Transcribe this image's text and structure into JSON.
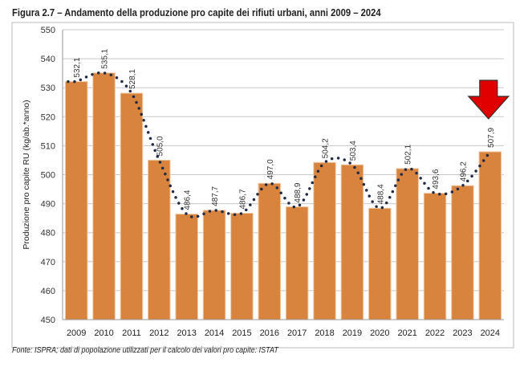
{
  "chart_data": {
    "type": "bar",
    "title": "Figura 2.7 – Andamento della produzione pro capite dei rifiuti urbani, anni 2009 – 2024",
    "ylabel": "Produzione pro capite RU (kg/ab.*anno)",
    "xlabel": "",
    "ylim": [
      450,
      550
    ],
    "yticks": [
      450,
      460,
      470,
      480,
      490,
      500,
      510,
      520,
      530,
      540,
      550
    ],
    "grid": true,
    "categories": [
      "2009",
      "2010",
      "2011",
      "2012",
      "2013",
      "2014",
      "2015",
      "2016",
      "2017",
      "2018",
      "2019",
      "2020",
      "2021",
      "2022",
      "2023",
      "2024"
    ],
    "values": [
      532.1,
      535.1,
      528.1,
      505.0,
      486.4,
      487.7,
      486.7,
      497.0,
      488.9,
      504.2,
      503.4,
      488.4,
      502.1,
      493.6,
      496.2,
      507.9
    ],
    "data_labels": [
      "532,1",
      "535,1",
      "528,1",
      "505,0",
      "486,4",
      "487,7",
      "486,7",
      "497,0",
      "488,9",
      "504,2",
      "503,4",
      "488,4",
      "502,1",
      "493,6",
      "496,2",
      "507,9"
    ],
    "trendline": "dotted smoothed line through values",
    "annotation": "red down arrow above 2024",
    "colors": {
      "bar": "#D9843E",
      "bar_edge": "#F0C8A0",
      "trend": "#1F2A44",
      "arrow": "#E00000",
      "grid": "#C8C8C8"
    }
  },
  "source": "Fonte: ISPRA; dati di popolazione utilizzati per il calcolo dei valori pro capite: ISTAT"
}
